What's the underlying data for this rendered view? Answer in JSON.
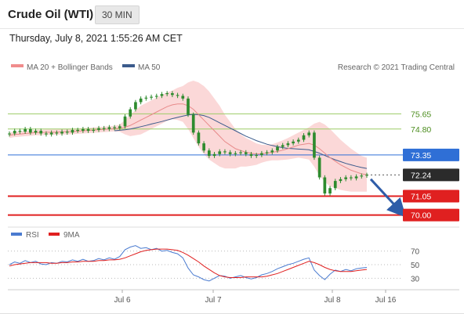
{
  "header": {
    "instrument": "Crude Oil (WTI)",
    "interval": "30 MIN"
  },
  "timestamp": "Thursday, July 8, 2021 1:55:26 AM CET",
  "legend": {
    "ma20_bb": "MA 20 + Bollinger Bands",
    "ma50": "MA 50",
    "credit": "Research © 2021 Trading Central",
    "rsi": "RSI",
    "ma9": "9MA"
  },
  "colors": {
    "candle": "#2e8b2e",
    "bollinger": "#f7a8a8",
    "ma20": "#e88a8a",
    "ma50": "#3b5b8c",
    "resistance_green": "#9ccc65",
    "pivot_blue": "#2f6fd6",
    "support_red": "#e02020",
    "current_tag": "#2b2b2b",
    "arrow": "#2f5da8"
  },
  "chart_data": {
    "type": "candlestick",
    "price_range": [
      69.5,
      77.5
    ],
    "x_ticks": [
      "Jul 6",
      "Jul 7",
      "Jul 8",
      "Jul 16"
    ],
    "levels": [
      {
        "label": "75.65",
        "value": 75.65,
        "kind": "resistance"
      },
      {
        "label": "74.80",
        "value": 74.8,
        "kind": "resistance"
      },
      {
        "label": "73.35",
        "value": 73.35,
        "kind": "pivot"
      },
      {
        "label": "72.24",
        "value": 72.24,
        "kind": "current"
      },
      {
        "label": "71.05",
        "value": 71.05,
        "kind": "support"
      },
      {
        "label": "70.00",
        "value": 70.0,
        "kind": "support"
      }
    ],
    "close": [
      74.55,
      74.7,
      74.65,
      74.8,
      74.6,
      74.7,
      74.55,
      74.5,
      74.6,
      74.55,
      74.65,
      74.6,
      74.75,
      74.7,
      74.8,
      74.7,
      74.75,
      74.85,
      74.8,
      74.9,
      74.85,
      74.95,
      75.5,
      75.9,
      76.3,
      76.5,
      76.55,
      76.6,
      76.65,
      76.75,
      76.8,
      76.7,
      76.65,
      76.5,
      75.6,
      74.6,
      74.0,
      73.6,
      73.3,
      73.4,
      73.55,
      73.5,
      73.4,
      73.45,
      73.5,
      73.4,
      73.3,
      73.35,
      73.45,
      73.5,
      73.6,
      73.8,
      73.9,
      74.0,
      74.1,
      74.2,
      74.45,
      74.6,
      73.2,
      72.1,
      71.2,
      71.5,
      71.9,
      72.0,
      72.1,
      72.05,
      72.15,
      72.2,
      72.24
    ],
    "ma20": [
      74.45,
      74.5,
      74.52,
      74.55,
      74.57,
      74.6,
      74.6,
      74.62,
      74.62,
      74.63,
      74.64,
      74.65,
      74.66,
      74.68,
      74.7,
      74.72,
      74.74,
      74.76,
      74.78,
      74.8,
      74.82,
      74.85,
      74.9,
      75.0,
      75.15,
      75.3,
      75.45,
      75.6,
      75.75,
      75.9,
      76.05,
      76.15,
      76.2,
      76.2,
      76.1,
      75.9,
      75.6,
      75.3,
      75.0,
      74.7,
      74.4,
      74.1,
      73.9,
      73.7,
      73.6,
      73.5,
      73.45,
      73.4,
      73.42,
      73.45,
      73.5,
      73.55,
      73.62,
      73.7,
      73.8,
      73.9,
      73.95,
      74.0,
      73.9,
      73.7,
      73.45,
      73.2,
      73.0,
      72.8,
      72.65,
      72.5,
      72.4,
      72.3,
      72.25
    ],
    "ma50": [
      null,
      null,
      null,
      null,
      null,
      null,
      null,
      null,
      null,
      null,
      null,
      null,
      null,
      null,
      null,
      null,
      null,
      null,
      null,
      null,
      74.7,
      74.73,
      74.76,
      74.8,
      74.86,
      74.93,
      75.0,
      75.08,
      75.15,
      75.22,
      75.3,
      75.38,
      75.45,
      75.52,
      75.58,
      75.62,
      75.6,
      75.55,
      75.45,
      75.3,
      75.15,
      75.0,
      74.85,
      74.7,
      74.55,
      74.4,
      74.28,
      74.15,
      74.05,
      73.95,
      73.88,
      73.82,
      73.76,
      73.72,
      73.7,
      73.68,
      73.66,
      73.64,
      73.55,
      73.45,
      73.32,
      73.2,
      73.08,
      72.98,
      72.88,
      72.8,
      72.72,
      72.65,
      72.6
    ],
    "band_width": [
      0.15,
      0.15,
      0.15,
      0.15,
      0.15,
      0.15,
      0.15,
      0.15,
      0.15,
      0.15,
      0.15,
      0.15,
      0.15,
      0.15,
      0.15,
      0.15,
      0.15,
      0.15,
      0.15,
      0.15,
      0.15,
      0.2,
      0.4,
      0.6,
      0.7,
      0.8,
      0.8,
      0.8,
      0.8,
      0.8,
      0.8,
      0.8,
      0.9,
      1.0,
      1.3,
      1.6,
      1.8,
      1.9,
      1.9,
      1.8,
      1.7,
      1.5,
      1.3,
      1.1,
      0.9,
      0.8,
      0.7,
      0.6,
      0.5,
      0.45,
      0.45,
      0.5,
      0.55,
      0.6,
      0.65,
      0.7,
      0.8,
      0.9,
      1.2,
      1.5,
      1.6,
      1.6,
      1.5,
      1.4,
      1.3,
      1.2,
      1.1,
      1.0,
      0.95
    ],
    "rsi": {
      "y_ticks": [
        70,
        50,
        30
      ],
      "ylim": [
        20,
        80
      ],
      "rsi": [
        50,
        54,
        52,
        56,
        53,
        55,
        51,
        50,
        53,
        52,
        55,
        54,
        57,
        55,
        58,
        55,
        56,
        59,
        57,
        60,
        58,
        62,
        72,
        76,
        78,
        74,
        75,
        72,
        74,
        70,
        71,
        68,
        66,
        60,
        45,
        35,
        32,
        28,
        26,
        30,
        34,
        33,
        30,
        32,
        34,
        31,
        29,
        31,
        35,
        37,
        40,
        44,
        47,
        50,
        52,
        55,
        58,
        60,
        42,
        34,
        28,
        36,
        42,
        40,
        43,
        41,
        44,
        45,
        46
      ],
      "ma9": [
        48,
        50,
        51,
        52,
        53,
        53,
        53,
        53,
        52,
        52,
        53,
        53,
        54,
        54,
        55,
        55,
        55,
        56,
        56,
        57,
        57,
        58,
        60,
        63,
        66,
        69,
        71,
        72,
        73,
        73,
        73,
        72,
        71,
        68,
        64,
        59,
        54,
        48,
        43,
        38,
        34,
        32,
        31,
        31,
        31,
        32,
        32,
        32,
        32,
        33,
        35,
        37,
        40,
        43,
        46,
        49,
        52,
        55,
        53,
        50,
        46,
        43,
        41,
        40,
        40,
        40,
        41,
        42,
        43
      ]
    }
  }
}
